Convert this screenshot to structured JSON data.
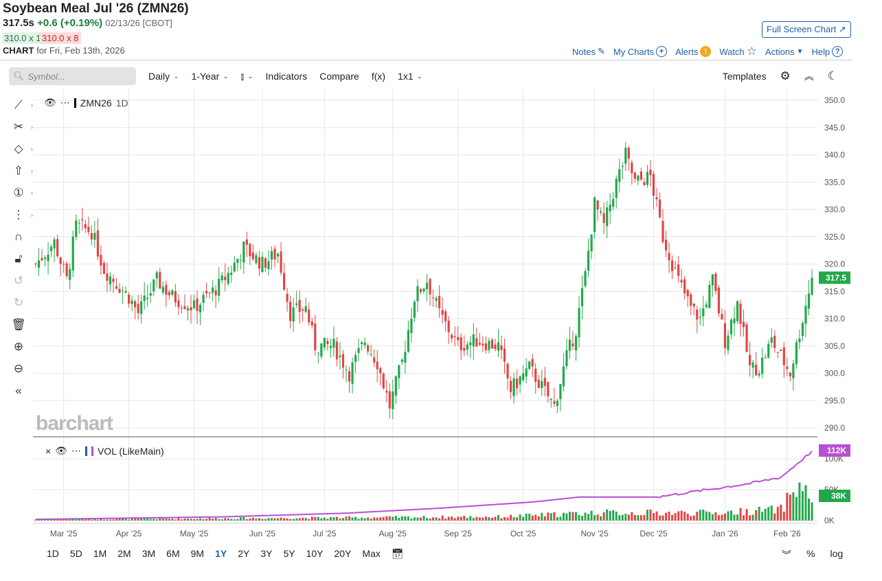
{
  "header": {
    "title": "Soybean Meal Jul '26 (ZMN26)",
    "last": "317.5s",
    "change": "+0.6 (+0.19%)",
    "meta": "02/13/26 [CBOT]",
    "bid": "310.0 x 1",
    "ask": "310.0 x 8",
    "chart_label": "CHART",
    "chart_for": "for Fri, Feb 13th, 2026",
    "fullscreen": "Full Screen Chart ↗"
  },
  "actions": {
    "notes": "Notes",
    "mycharts": "My Charts",
    "alerts": "Alerts",
    "watch": "Watch",
    "actions": "Actions",
    "help": "Help"
  },
  "toolbar": {
    "search_placeholder": "Symbol...",
    "interval": "Daily",
    "range": "1-Year",
    "indicators": "Indicators",
    "compare": "Compare",
    "fx": "f(x)",
    "layout": "1x1",
    "templates": "Templates"
  },
  "legend": {
    "symbol": "ZMN26",
    "interval": "1D",
    "vol": "VOL (LikeMain)"
  },
  "logo": "barchart",
  "periods": [
    "1D",
    "5D",
    "1M",
    "2M",
    "3M",
    "6M",
    "9M",
    "1Y",
    "2Y",
    "3Y",
    "5Y",
    "10Y",
    "20Y",
    "Max"
  ],
  "active_period": "1Y",
  "bottom_right": {
    "percent": "%",
    "log": "log"
  },
  "colors": {
    "up": "#22a84a",
    "down": "#e04545",
    "accent": "#1f5fa8",
    "oi": "#b84fd0"
  },
  "chart_data": {
    "type": "candlestick",
    "title": "ZMN26 1D",
    "ylim": [
      290,
      350
    ],
    "yticks": [
      290,
      295,
      300,
      305,
      310,
      315,
      320,
      325,
      330,
      335,
      340,
      345,
      350
    ],
    "xticks": [
      "Mar '25",
      "Apr '25",
      "May '25",
      "Jun '25",
      "Jul '25",
      "Aug '25",
      "Sep '25",
      "Oct '25",
      "Nov '25",
      "Dec '25",
      "Jan '26",
      "Feb '26"
    ],
    "xtick_index": [
      9,
      30,
      51,
      73,
      93,
      115,
      136,
      157,
      180,
      199,
      222,
      242
    ],
    "bars": 251,
    "close_anchors": [
      [
        0,
        320
      ],
      [
        6,
        324
      ],
      [
        10,
        317
      ],
      [
        13,
        327
      ],
      [
        18,
        326
      ],
      [
        22,
        319
      ],
      [
        30,
        314
      ],
      [
        33,
        311
      ],
      [
        39,
        317
      ],
      [
        44,
        314
      ],
      [
        51,
        312
      ],
      [
        59,
        316
      ],
      [
        63,
        319
      ],
      [
        67,
        323
      ],
      [
        73,
        320
      ],
      [
        78,
        322
      ],
      [
        82,
        311
      ],
      [
        87,
        312
      ],
      [
        90,
        305
      ],
      [
        96,
        305
      ],
      [
        101,
        300
      ],
      [
        106,
        306
      ],
      [
        110,
        302
      ],
      [
        114,
        294
      ],
      [
        118,
        302
      ],
      [
        122,
        314
      ],
      [
        126,
        317
      ],
      [
        130,
        311
      ],
      [
        136,
        305
      ],
      [
        142,
        306
      ],
      [
        149,
        305
      ],
      [
        153,
        297
      ],
      [
        159,
        301
      ],
      [
        167,
        294
      ],
      [
        171,
        303
      ],
      [
        174,
        308
      ],
      [
        177,
        318
      ],
      [
        180,
        331
      ],
      [
        183,
        327
      ],
      [
        187,
        335
      ],
      [
        190,
        340
      ],
      [
        193,
        335
      ],
      [
        198,
        336
      ],
      [
        202,
        325
      ],
      [
        207,
        317
      ],
      [
        211,
        312
      ],
      [
        214,
        310
      ],
      [
        218,
        317
      ],
      [
        222,
        306
      ],
      [
        226,
        313
      ],
      [
        230,
        301
      ],
      [
        233,
        301
      ],
      [
        237,
        306
      ],
      [
        240,
        303
      ],
      [
        243,
        300
      ],
      [
        247,
        310
      ],
      [
        250,
        317.5
      ]
    ],
    "last_price": "317.5",
    "volume": {
      "ylim": [
        0,
        120
      ],
      "yticks": [
        "0K",
        "50K",
        "100K"
      ],
      "last_volume": "38K",
      "last_oi": "112K",
      "oi_anchors": [
        [
          0,
          2
        ],
        [
          60,
          6
        ],
        [
          100,
          12
        ],
        [
          130,
          20
        ],
        [
          160,
          30
        ],
        [
          175,
          38
        ],
        [
          200,
          38
        ],
        [
          230,
          60
        ],
        [
          240,
          70
        ],
        [
          250,
          112
        ]
      ],
      "vol_anchors": [
        [
          0,
          2
        ],
        [
          150,
          7
        ],
        [
          180,
          14
        ],
        [
          220,
          14
        ],
        [
          240,
          20
        ],
        [
          244,
          55
        ],
        [
          246,
          62
        ],
        [
          250,
          38
        ]
      ]
    }
  }
}
